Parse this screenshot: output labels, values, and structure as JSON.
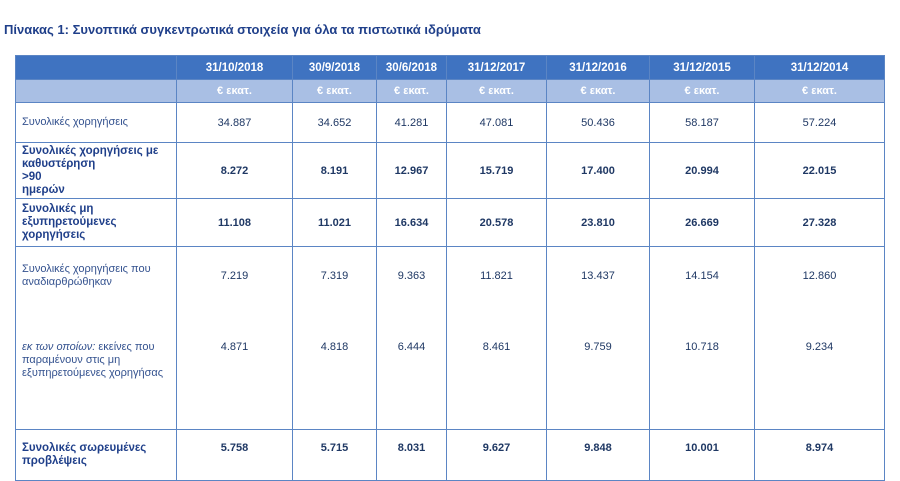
{
  "title": "Πίνακας 1: Συνοπτικά συγκεντρωτικά στοιχεία για όλα τα πιστωτικά ιδρύματα",
  "columns": [
    "31/10/2018",
    "30/9/2018",
    "30/6/2018",
    "31/12/2017",
    "31/12/2016",
    "31/12/2015",
    "31/12/2014"
  ],
  "unit": "€ εκατ.",
  "rows": [
    {
      "label": "Συνολικές χορηγήσεις",
      "values": [
        "34.887",
        "34.652",
        "41.281",
        "47.081",
        "50.436",
        "58.187",
        "57.224"
      ]
    },
    {
      "label_a": "Συνολικές χορηγήσεις με καθυστέρηση",
      "label_b": ">90",
      "label_c": "ημερών",
      "values": [
        "8.272",
        "8.191",
        "12.967",
        "15.719",
        "17.400",
        "20.994",
        "22.015"
      ]
    },
    {
      "label": "Συνολικές μη εξυπηρετούμενες χορηγήσεις",
      "values": [
        "11.108",
        "11.021",
        "16.634",
        "20.578",
        "23.810",
        "26.669",
        "27.328"
      ]
    },
    {
      "label": "Συνολικές χορηγήσεις που αναδιαρθρώθηκαν",
      "values": [
        "7.219",
        "7.319",
        "9.363",
        "11.821",
        "13.437",
        "14.154",
        "12.860"
      ]
    },
    {
      "label_italic": "εκ των οποίων:",
      "label_rest": "εκείνες που παραμένουν στις μη εξυπηρετούμενες χορηγήσας",
      "values": [
        "4.871",
        "4.818",
        "6.444",
        "8.461",
        "9.759",
        "10.718",
        "9.234"
      ]
    },
    {
      "label": "Συνολικές σωρευμένες προβλέψεις",
      "values": [
        "5.758",
        "5.715",
        "8.031",
        "9.627",
        "9.848",
        "10.001",
        "8.974"
      ]
    }
  ],
  "colors": {
    "header_dark": "#3f73c1",
    "header_light": "#a9bfe4",
    "border": "#5b85c4",
    "title": "#1f3f8a"
  }
}
